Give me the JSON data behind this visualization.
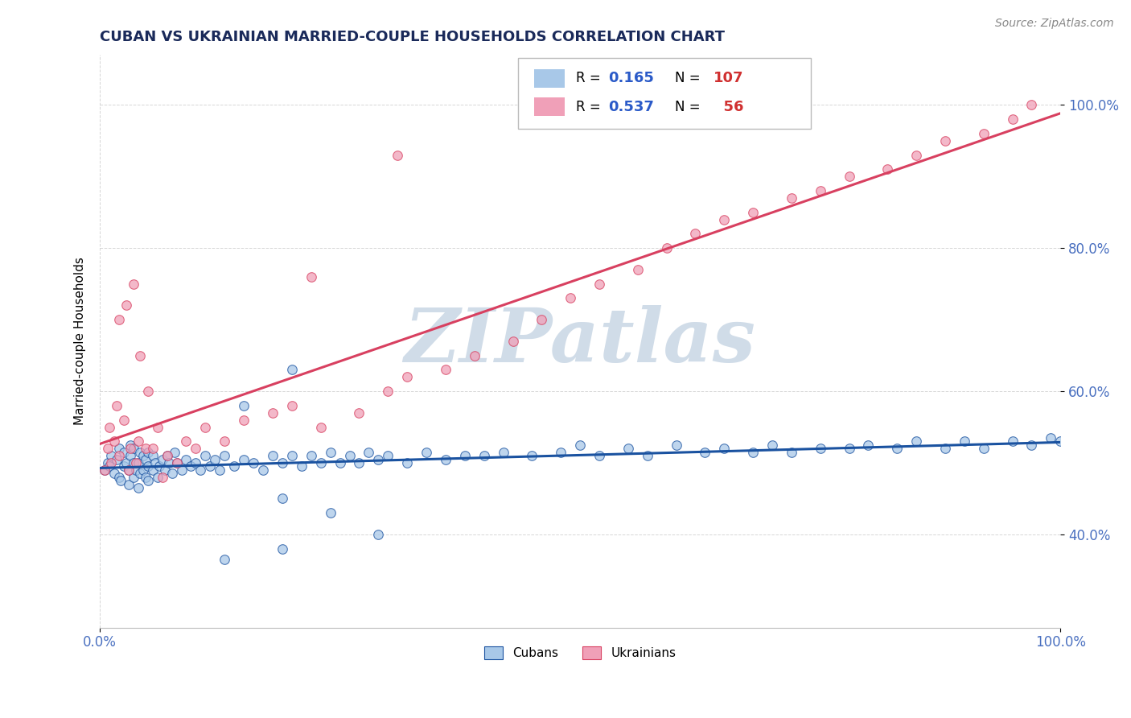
{
  "title": "CUBAN VS UKRAINIAN MARRIED-COUPLE HOUSEHOLDS CORRELATION CHART",
  "source_text": "Source: ZipAtlas.com",
  "ylabel": "Married-couple Households",
  "xlim": [
    0.0,
    1.0
  ],
  "ylim": [
    0.27,
    1.07
  ],
  "xtick_labels": [
    "0.0%",
    "100.0%"
  ],
  "ytick_labels": [
    "40.0%",
    "60.0%",
    "80.0%",
    "100.0%"
  ],
  "ytick_values": [
    0.4,
    0.6,
    0.8,
    1.0
  ],
  "legend_cubans": "Cubans",
  "legend_ukrainians": "Ukrainians",
  "r_cubans": "0.165",
  "n_cubans": "107",
  "r_ukrainians": "0.537",
  "n_ukrainians": "56",
  "color_cubans": "#a8c8e8",
  "color_ukrainians": "#f0a0b8",
  "line_color_cubans": "#1a52a0",
  "line_color_ukrainians": "#d84060",
  "watermark_color": "#d0dce8",
  "background_color": "#ffffff",
  "cubans_x": [
    0.005,
    0.008,
    0.01,
    0.012,
    0.015,
    0.018,
    0.02,
    0.02,
    0.022,
    0.025,
    0.025,
    0.028,
    0.03,
    0.03,
    0.032,
    0.032,
    0.035,
    0.035,
    0.035,
    0.038,
    0.04,
    0.04,
    0.042,
    0.042,
    0.045,
    0.045,
    0.048,
    0.048,
    0.05,
    0.05,
    0.05,
    0.055,
    0.055,
    0.058,
    0.06,
    0.062,
    0.065,
    0.068,
    0.07,
    0.072,
    0.075,
    0.078,
    0.08,
    0.085,
    0.09,
    0.095,
    0.1,
    0.105,
    0.11,
    0.115,
    0.12,
    0.125,
    0.13,
    0.14,
    0.15,
    0.16,
    0.17,
    0.18,
    0.19,
    0.2,
    0.21,
    0.22,
    0.23,
    0.24,
    0.25,
    0.26,
    0.27,
    0.28,
    0.29,
    0.3,
    0.32,
    0.34,
    0.36,
    0.38,
    0.4,
    0.42,
    0.45,
    0.48,
    0.5,
    0.52,
    0.55,
    0.57,
    0.6,
    0.63,
    0.65,
    0.68,
    0.7,
    0.72,
    0.75,
    0.78,
    0.8,
    0.83,
    0.85,
    0.88,
    0.9,
    0.92,
    0.95,
    0.97,
    0.99,
    1.0,
    0.13,
    0.19,
    0.24,
    0.29,
    0.19,
    0.15,
    0.2
  ],
  "cubans_y": [
    0.49,
    0.5,
    0.495,
    0.51,
    0.485,
    0.505,
    0.48,
    0.52,
    0.475,
    0.495,
    0.515,
    0.5,
    0.47,
    0.49,
    0.51,
    0.525,
    0.48,
    0.5,
    0.52,
    0.49,
    0.465,
    0.5,
    0.485,
    0.515,
    0.49,
    0.51,
    0.48,
    0.505,
    0.475,
    0.495,
    0.515,
    0.49,
    0.51,
    0.5,
    0.48,
    0.495,
    0.505,
    0.49,
    0.51,
    0.5,
    0.485,
    0.515,
    0.5,
    0.49,
    0.505,
    0.495,
    0.5,
    0.49,
    0.51,
    0.495,
    0.505,
    0.49,
    0.51,
    0.495,
    0.505,
    0.5,
    0.49,
    0.51,
    0.5,
    0.51,
    0.495,
    0.51,
    0.5,
    0.515,
    0.5,
    0.51,
    0.5,
    0.515,
    0.505,
    0.51,
    0.5,
    0.515,
    0.505,
    0.51,
    0.51,
    0.515,
    0.51,
    0.515,
    0.525,
    0.51,
    0.52,
    0.51,
    0.525,
    0.515,
    0.52,
    0.515,
    0.525,
    0.515,
    0.52,
    0.52,
    0.525,
    0.52,
    0.53,
    0.52,
    0.53,
    0.52,
    0.53,
    0.525,
    0.535,
    0.53,
    0.365,
    0.45,
    0.43,
    0.4,
    0.38,
    0.58,
    0.63
  ],
  "ukrainians_x": [
    0.005,
    0.008,
    0.01,
    0.012,
    0.015,
    0.018,
    0.02,
    0.02,
    0.025,
    0.028,
    0.03,
    0.032,
    0.035,
    0.038,
    0.04,
    0.042,
    0.048,
    0.05,
    0.055,
    0.06,
    0.065,
    0.07,
    0.08,
    0.09,
    0.1,
    0.11,
    0.13,
    0.15,
    0.18,
    0.2,
    0.23,
    0.27,
    0.3,
    0.32,
    0.36,
    0.39,
    0.43,
    0.46,
    0.49,
    0.52,
    0.56,
    0.59,
    0.62,
    0.65,
    0.68,
    0.72,
    0.75,
    0.78,
    0.82,
    0.85,
    0.88,
    0.92,
    0.95,
    0.97,
    0.22,
    0.31
  ],
  "ukrainians_y": [
    0.49,
    0.52,
    0.55,
    0.5,
    0.53,
    0.58,
    0.7,
    0.51,
    0.56,
    0.72,
    0.49,
    0.52,
    0.75,
    0.5,
    0.53,
    0.65,
    0.52,
    0.6,
    0.52,
    0.55,
    0.48,
    0.51,
    0.5,
    0.53,
    0.52,
    0.55,
    0.53,
    0.56,
    0.57,
    0.58,
    0.55,
    0.57,
    0.6,
    0.62,
    0.63,
    0.65,
    0.67,
    0.7,
    0.73,
    0.75,
    0.77,
    0.8,
    0.82,
    0.84,
    0.85,
    0.87,
    0.88,
    0.9,
    0.91,
    0.93,
    0.95,
    0.96,
    0.98,
    1.0,
    0.76,
    0.93
  ]
}
